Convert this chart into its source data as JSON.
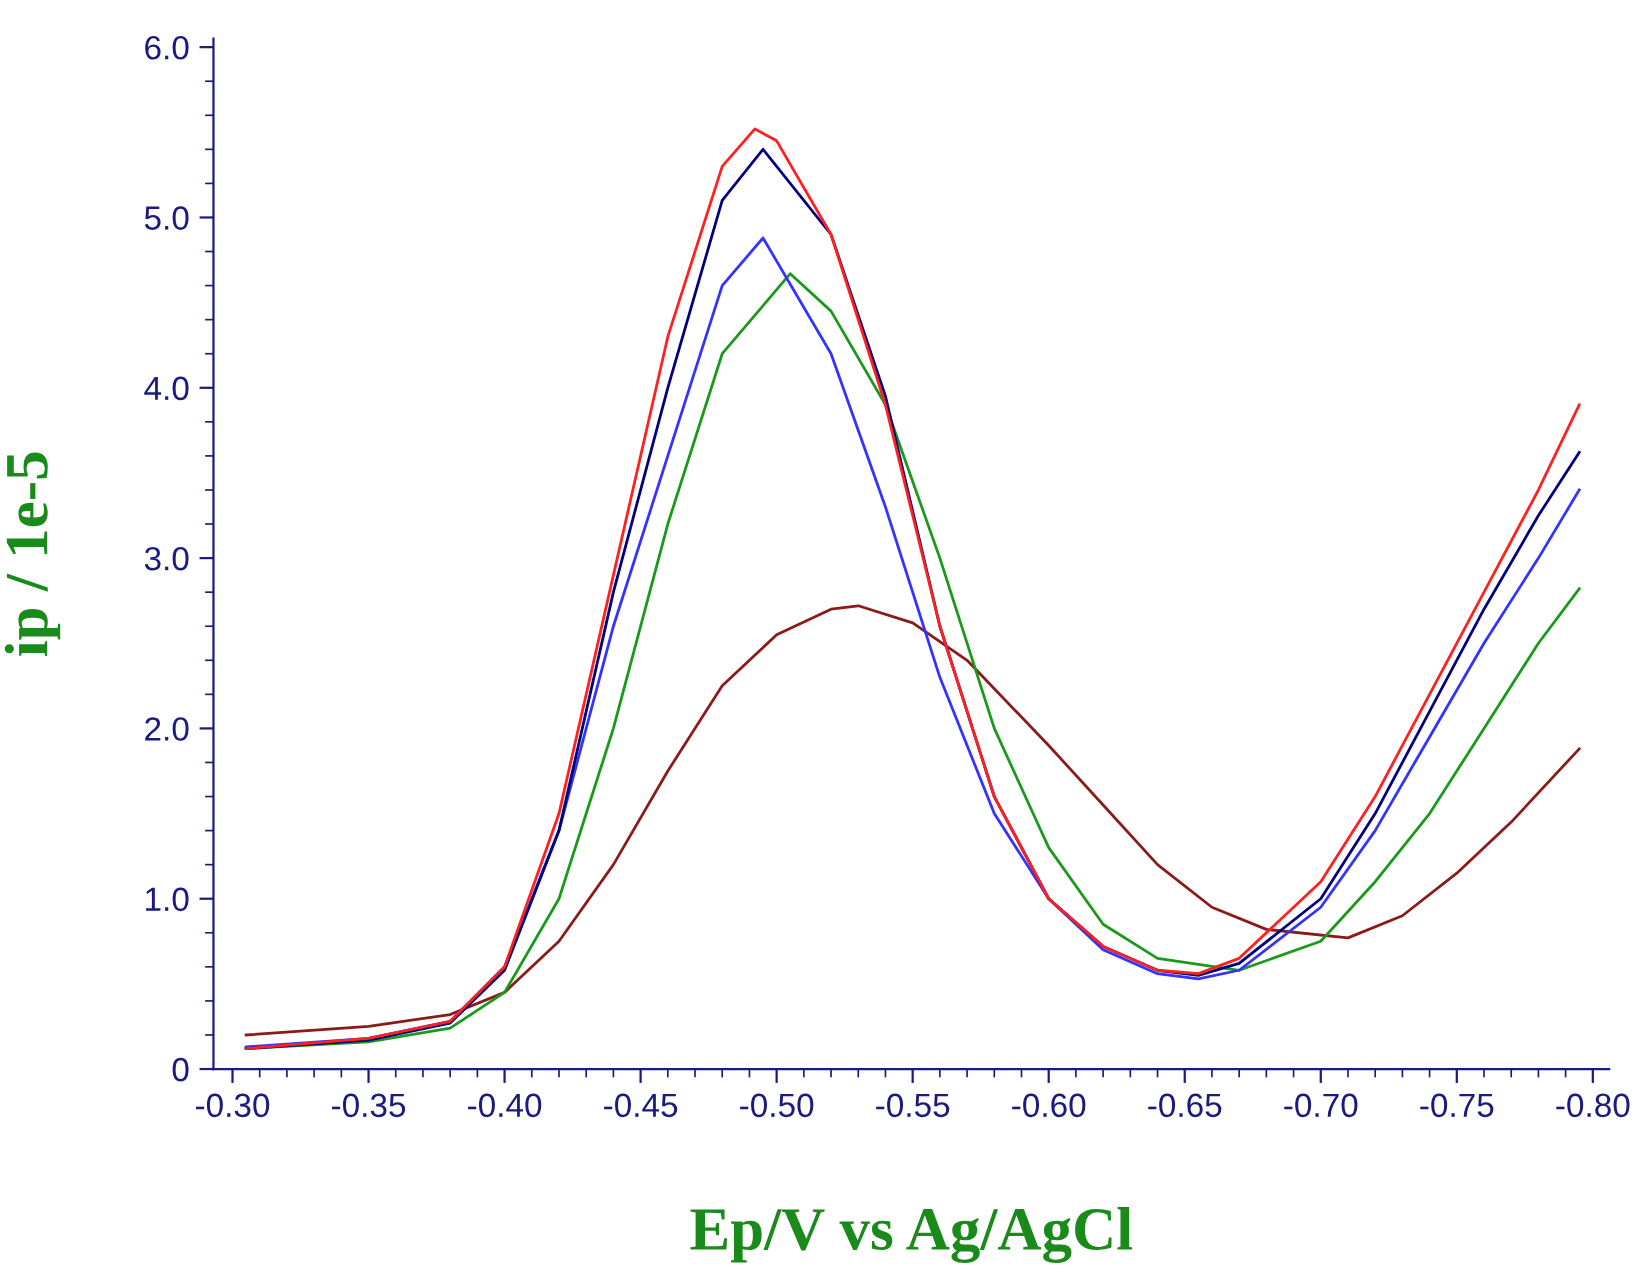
{
  "chart_data": {
    "type": "line",
    "xlabel": "Ep/V vs Ag/AgCl",
    "ylabel": "ip / 1e-5",
    "xlim": [
      -0.293,
      -0.806
    ],
    "ylim": [
      0,
      6.05
    ],
    "xticks": [
      {
        "value": -0.3,
        "label": "-0.30"
      },
      {
        "value": -0.35,
        "label": "-0.35"
      },
      {
        "value": -0.4,
        "label": "-0.40"
      },
      {
        "value": -0.45,
        "label": "-0.45"
      },
      {
        "value": -0.5,
        "label": "-0.50"
      },
      {
        "value": -0.55,
        "label": "-0.55"
      },
      {
        "value": -0.6,
        "label": "-0.60"
      },
      {
        "value": -0.65,
        "label": "-0.65"
      },
      {
        "value": -0.7,
        "label": "-0.70"
      },
      {
        "value": -0.75,
        "label": "-0.75"
      },
      {
        "value": -0.8,
        "label": "-0.80"
      }
    ],
    "yticks": [
      0,
      {
        "value": 1,
        "label": "1.0"
      },
      {
        "value": 2,
        "label": "2.0"
      },
      {
        "value": 3,
        "label": "3.0"
      },
      {
        "value": 4,
        "label": "4.0"
      },
      {
        "value": 5,
        "label": "5.0"
      },
      {
        "value": 6,
        "label": "6.0"
      }
    ],
    "grid": false,
    "marker": "none",
    "line_style": "solid",
    "series": [
      {
        "color": "#8b1a1a",
        "x": [
          -0.305,
          -0.35,
          -0.38,
          -0.4,
          -0.42,
          -0.44,
          -0.46,
          -0.48,
          -0.5,
          -0.52,
          -0.53,
          -0.55,
          -0.57,
          -0.6,
          -0.62,
          -0.64,
          -0.66,
          -0.68,
          -0.71,
          -0.73,
          -0.75,
          -0.77,
          -0.795
        ],
        "values": [
          0.2,
          0.25,
          0.32,
          0.45,
          0.75,
          1.2,
          1.75,
          2.25,
          2.55,
          2.7,
          2.72,
          2.62,
          2.4,
          1.9,
          1.55,
          1.2,
          0.95,
          0.82,
          0.77,
          0.9,
          1.15,
          1.45,
          1.88
        ]
      },
      {
        "color": "#1a9a1a",
        "x": [
          -0.305,
          -0.35,
          -0.38,
          -0.4,
          -0.42,
          -0.44,
          -0.46,
          -0.48,
          -0.505,
          -0.52,
          -0.54,
          -0.56,
          -0.58,
          -0.6,
          -0.62,
          -0.64,
          -0.67,
          -0.7,
          -0.72,
          -0.74,
          -0.76,
          -0.78,
          -0.795
        ],
        "values": [
          0.12,
          0.16,
          0.24,
          0.45,
          1.0,
          2.0,
          3.2,
          4.2,
          4.67,
          4.45,
          3.9,
          3.0,
          2.0,
          1.3,
          0.85,
          0.65,
          0.58,
          0.75,
          1.1,
          1.5,
          2.0,
          2.5,
          2.82
        ]
      },
      {
        "color": "#3333ff",
        "x": [
          -0.305,
          -0.35,
          -0.38,
          -0.4,
          -0.42,
          -0.44,
          -0.46,
          -0.48,
          -0.495,
          -0.52,
          -0.54,
          -0.56,
          -0.58,
          -0.6,
          -0.62,
          -0.64,
          -0.655,
          -0.67,
          -0.7,
          -0.72,
          -0.74,
          -0.76,
          -0.78,
          -0.795
        ],
        "values": [
          0.13,
          0.18,
          0.28,
          0.6,
          1.4,
          2.6,
          3.6,
          4.6,
          4.88,
          4.2,
          3.3,
          2.3,
          1.5,
          1.0,
          0.7,
          0.56,
          0.53,
          0.58,
          0.95,
          1.4,
          1.95,
          2.5,
          3.0,
          3.4
        ]
      },
      {
        "color": "#000080",
        "x": [
          -0.305,
          -0.35,
          -0.38,
          -0.4,
          -0.42,
          -0.44,
          -0.46,
          -0.48,
          -0.495,
          -0.52,
          -0.54,
          -0.56,
          -0.58,
          -0.6,
          -0.62,
          -0.64,
          -0.655,
          -0.67,
          -0.7,
          -0.72,
          -0.74,
          -0.76,
          -0.78,
          -0.795
        ],
        "values": [
          0.12,
          0.17,
          0.27,
          0.58,
          1.4,
          2.8,
          4.0,
          5.1,
          5.4,
          4.9,
          3.95,
          2.6,
          1.6,
          1.0,
          0.72,
          0.58,
          0.55,
          0.62,
          1.0,
          1.5,
          2.1,
          2.7,
          3.25,
          3.62
        ]
      },
      {
        "color": "#ff2020",
        "x": [
          -0.305,
          -0.35,
          -0.38,
          -0.4,
          -0.42,
          -0.44,
          -0.46,
          -0.48,
          -0.492,
          -0.5,
          -0.52,
          -0.54,
          -0.56,
          -0.58,
          -0.6,
          -0.62,
          -0.64,
          -0.655,
          -0.67,
          -0.7,
          -0.72,
          -0.74,
          -0.76,
          -0.78,
          -0.795
        ],
        "values": [
          0.12,
          0.18,
          0.28,
          0.6,
          1.5,
          2.9,
          4.3,
          5.3,
          5.52,
          5.45,
          4.9,
          3.9,
          2.6,
          1.6,
          1.0,
          0.72,
          0.58,
          0.56,
          0.65,
          1.1,
          1.6,
          2.2,
          2.8,
          3.4,
          3.9
        ]
      }
    ]
  }
}
